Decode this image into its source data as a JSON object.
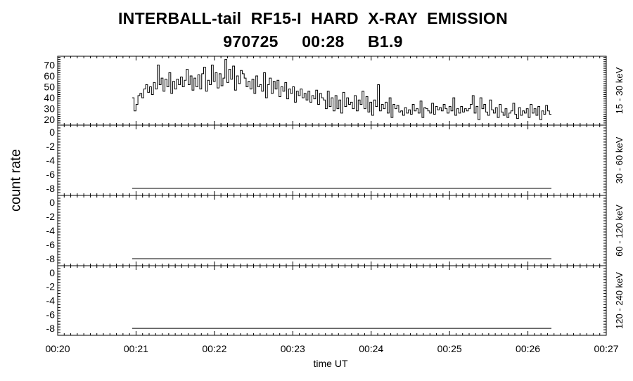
{
  "title_line1": "INTERBALL-tail  RF15-I  HARD  X-RAY  EMISSION",
  "title_line2": "970725     00:28     B1.9",
  "chart_data": {
    "type": "line",
    "ylabel": "count rate",
    "xlabel": "time UT",
    "x_range_minutes": [
      0,
      7
    ],
    "x_ticks": [
      "00:20",
      "00:21",
      "00:22",
      "00:23",
      "00:24",
      "00:25",
      "00:26",
      "00:27"
    ],
    "data_x_range_minutes": [
      0.95,
      6.3
    ],
    "panels": [
      {
        "band": "15 - 30 keV",
        "ylim": [
          15,
          78
        ],
        "yticks": [
          "20",
          "30",
          "40",
          "50",
          "60",
          "70"
        ],
        "ytick_values": [
          20,
          30,
          40,
          50,
          60,
          70
        ],
        "values": [
          40,
          28,
          34,
          42,
          44,
          40,
          48,
          52,
          45,
          50,
          43,
          54,
          48,
          70,
          52,
          58,
          46,
          57,
          50,
          63,
          44,
          55,
          48,
          57,
          52,
          59,
          50,
          56,
          66,
          52,
          60,
          47,
          58,
          50,
          61,
          48,
          62,
          68,
          46,
          56,
          52,
          70,
          55,
          63,
          49,
          62,
          51,
          58,
          75,
          54,
          66,
          57,
          69,
          47,
          60,
          53,
          65,
          62,
          58,
          50,
          55,
          48,
          57,
          44,
          60,
          50,
          52,
          46,
          63,
          40,
          52,
          58,
          44,
          55,
          48,
          56,
          41,
          50,
          46,
          54,
          39,
          48,
          44,
          50,
          36,
          46,
          42,
          48,
          40,
          44,
          38,
          46,
          36,
          42,
          39,
          47,
          34,
          44,
          40,
          38,
          30,
          46,
          32,
          40,
          28,
          42,
          30,
          38,
          26,
          45,
          32,
          40,
          34,
          36,
          30,
          42,
          28,
          38,
          34,
          46,
          30,
          41,
          27,
          36,
          24,
          38,
          32,
          52,
          28,
          34,
          30,
          36,
          26,
          40,
          22,
          34,
          30,
          33,
          27,
          28,
          24,
          31,
          26,
          29,
          25,
          34,
          28,
          30,
          26,
          37,
          22,
          31,
          30,
          28,
          26,
          35,
          25,
          32,
          29,
          31,
          28,
          34,
          30,
          26,
          32,
          28,
          40,
          24,
          30,
          26,
          32,
          27,
          30,
          28,
          30,
          34,
          42,
          26,
          32,
          20,
          40,
          30,
          34,
          27,
          24,
          38,
          29,
          26,
          31,
          22,
          34,
          27,
          24,
          30,
          22,
          26,
          28,
          35,
          25,
          21,
          31,
          24,
          28,
          26,
          30,
          22,
          34,
          26,
          30,
          24,
          32,
          20,
          28,
          25,
          33,
          28,
          25
        ]
      },
      {
        "band": "30 - 60 keV",
        "ylim": [
          -9,
          1
        ],
        "yticks": [
          "-8",
          "-6",
          "-4",
          "-2",
          "0"
        ],
        "ytick_values": [
          -8,
          -6,
          -4,
          -2,
          0
        ],
        "values": [
          -8,
          -8
        ]
      },
      {
        "band": "60 - 120 keV",
        "ylim": [
          -9,
          1
        ],
        "yticks": [
          "-8",
          "-6",
          "-4",
          "-2",
          "0"
        ],
        "ytick_values": [
          -8,
          -6,
          -4,
          -2,
          0
        ],
        "values": [
          -8,
          -8
        ]
      },
      {
        "band": "120 - 240 keV",
        "ylim": [
          -9,
          1
        ],
        "yticks": [
          "-8",
          "-6",
          "-4",
          "-2",
          "0"
        ],
        "ytick_values": [
          -8,
          -6,
          -4,
          -2,
          0
        ],
        "values": [
          -8,
          -8
        ]
      }
    ]
  }
}
